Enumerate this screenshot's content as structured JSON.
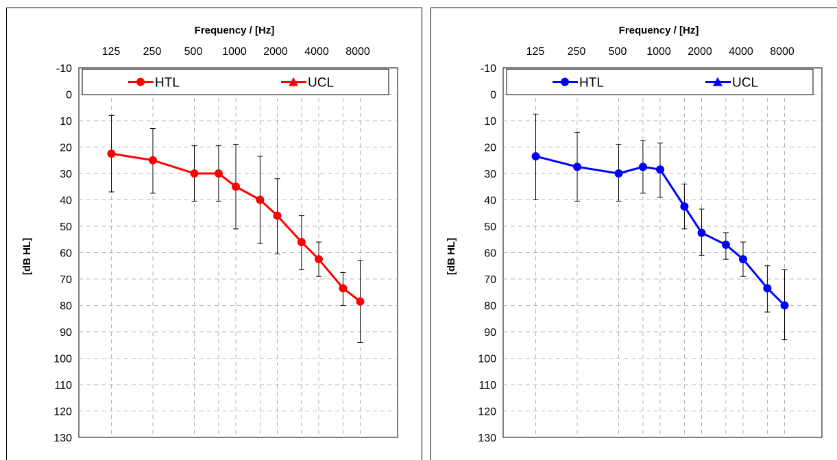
{
  "chart_data": [
    {
      "type": "line",
      "xlabel": "Frequency / [Hz]",
      "ylabel": "[dB HL]",
      "x_ticks": [
        "125",
        "250",
        "500",
        "1000",
        "2000",
        "4000",
        "8000"
      ],
      "ylim": [
        -10,
        130
      ],
      "y_ticks": [
        "-10",
        "0",
        "10",
        "20",
        "30",
        "40",
        "50",
        "60",
        "70",
        "80",
        "90",
        "100",
        "110",
        "120",
        "130"
      ],
      "y_inverted": true,
      "x_scale": "log",
      "grid": true,
      "legend_position": "top",
      "color": "#ff0000",
      "series": [
        {
          "name": "HTL",
          "marker": "circle",
          "x": [
            125,
            250,
            500,
            750,
            1000,
            1500,
            2000,
            3000,
            4000,
            6000,
            8000
          ],
          "y": [
            22.5,
            25,
            30,
            30,
            35,
            40,
            46,
            56,
            62.5,
            73.5,
            78.5
          ],
          "err_low": [
            8,
            13,
            19.5,
            19.5,
            19,
            23.5,
            32,
            46,
            56,
            67.5,
            63
          ],
          "err_high": [
            37,
            37.5,
            40.5,
            40.5,
            51,
            56.5,
            60.5,
            66.5,
            69,
            80,
            94
          ]
        },
        {
          "name": "UCL",
          "marker": "triangle",
          "x": [],
          "y": []
        }
      ]
    },
    {
      "type": "line",
      "xlabel": "Frequency / [Hz]",
      "ylabel": "[dB HL]",
      "x_ticks": [
        "125",
        "250",
        "500",
        "1000",
        "2000",
        "4000",
        "8000"
      ],
      "ylim": [
        -10,
        130
      ],
      "y_ticks": [
        "-10",
        "0",
        "10",
        "20",
        "30",
        "40",
        "50",
        "60",
        "70",
        "80",
        "90",
        "100",
        "110",
        "120",
        "130"
      ],
      "y_inverted": true,
      "x_scale": "log",
      "grid": true,
      "legend_position": "top",
      "color": "#0000ff",
      "series": [
        {
          "name": "HTL",
          "marker": "circle",
          "x": [
            125,
            250,
            500,
            750,
            1000,
            1500,
            2000,
            3000,
            4000,
            6000,
            8000
          ],
          "y": [
            23.5,
            27.5,
            30,
            27.5,
            28.5,
            42.5,
            52.5,
            57,
            62.5,
            73.5,
            80
          ],
          "err_low": [
            7.5,
            14.5,
            19,
            17.5,
            18.5,
            34,
            43.5,
            52.5,
            56,
            65,
            66.5
          ],
          "err_high": [
            40,
            40.5,
            40.5,
            37.5,
            39,
            51,
            61,
            62.5,
            69,
            82.5,
            93
          ]
        },
        {
          "name": "UCL",
          "marker": "triangle",
          "x": [],
          "y": []
        }
      ]
    }
  ]
}
